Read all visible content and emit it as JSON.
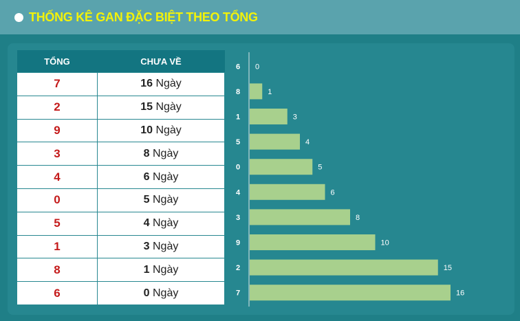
{
  "header": {
    "title": "THỐNG KÊ GAN ĐẶC BIỆT THEO TỔNG"
  },
  "table": {
    "col_sum": "TỔNG",
    "col_days": "CHƯA VỀ",
    "unit": "Ngày",
    "rows": [
      {
        "sum": "7",
        "days": "16"
      },
      {
        "sum": "2",
        "days": "15"
      },
      {
        "sum": "9",
        "days": "10"
      },
      {
        "sum": "3",
        "days": "8"
      },
      {
        "sum": "4",
        "days": "6"
      },
      {
        "sum": "0",
        "days": "5"
      },
      {
        "sum": "5",
        "days": "4"
      },
      {
        "sum": "1",
        "days": "3"
      },
      {
        "sum": "8",
        "days": "1"
      },
      {
        "sum": "6",
        "days": "0"
      }
    ]
  },
  "colors": {
    "bar": "#a8d08d",
    "accent_title": "#f2f20a",
    "sum_text": "#c41a1a"
  },
  "chart_data": {
    "type": "bar",
    "orientation": "horizontal",
    "categories": [
      "6",
      "8",
      "1",
      "5",
      "0",
      "4",
      "3",
      "9",
      "2",
      "7"
    ],
    "values": [
      0,
      1,
      3,
      4,
      5,
      6,
      8,
      10,
      15,
      16
    ],
    "title": "",
    "xlabel": "",
    "ylabel": "",
    "xlim": [
      0,
      16
    ],
    "grid": false,
    "data_labels": true
  }
}
